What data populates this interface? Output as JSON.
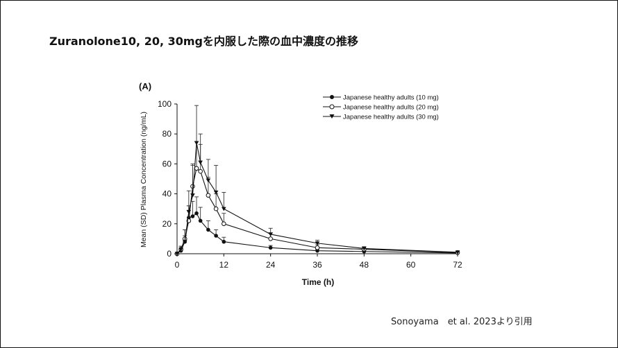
{
  "slide": {
    "title": "Zuranolone10, 20, 30mgを内服した際の血中濃度の推移",
    "citation": "Sonoyama　et al. 2023より引用"
  },
  "chart_data": {
    "type": "line",
    "panel_label": "(A)",
    "title": "",
    "xlabel": "Time (h)",
    "ylabel": "Mean (SD) Plasma Concentration (ng/mL)",
    "xlim": [
      0,
      72
    ],
    "ylim": [
      0,
      100
    ],
    "x_ticks": [
      0,
      12,
      24,
      36,
      48,
      60,
      72
    ],
    "y_ticks": [
      0,
      20,
      40,
      60,
      80,
      100
    ],
    "legend_position": "top-right",
    "grid": false,
    "series": [
      {
        "name": "Japanese healthy adults (10 mg)",
        "marker": "filled-circle",
        "x": [
          0,
          1,
          2,
          3,
          4,
          5,
          6,
          8,
          10,
          12,
          24,
          36,
          48,
          72
        ],
        "y": [
          0,
          2,
          8,
          24,
          25,
          27,
          22,
          16,
          12,
          8,
          4,
          2,
          1.5,
          0.5
        ],
        "sd": [
          0,
          1,
          4,
          8,
          10,
          11,
          9,
          6,
          4,
          3,
          1.5,
          1,
          0.6,
          0.3
        ]
      },
      {
        "name": "Japanese healthy adults (20 mg)",
        "marker": "open-circle",
        "x": [
          0,
          1,
          2,
          3,
          4,
          5,
          6,
          8,
          10,
          12,
          24,
          36,
          48,
          72
        ],
        "y": [
          0,
          3,
          10,
          22,
          45,
          57,
          55,
          39,
          30,
          20,
          10,
          4,
          3,
          0.8
        ],
        "sd": [
          0,
          2,
          6,
          10,
          15,
          18,
          18,
          12,
          10,
          7,
          4,
          2,
          1.5,
          0.4
        ]
      },
      {
        "name": "Japanese healthy adults (30 mg)",
        "marker": "filled-triangle-down",
        "x": [
          0,
          1,
          2,
          3,
          4,
          5,
          6,
          8,
          10,
          12,
          24,
          36,
          48,
          72
        ],
        "y": [
          0,
          3,
          8,
          28,
          39,
          74,
          61,
          49,
          41,
          30,
          13,
          7,
          3.5,
          1
        ],
        "sd": [
          0,
          2,
          8,
          14,
          20,
          25,
          19,
          14,
          18,
          11,
          4,
          2,
          1.2,
          0.5
        ]
      }
    ]
  }
}
